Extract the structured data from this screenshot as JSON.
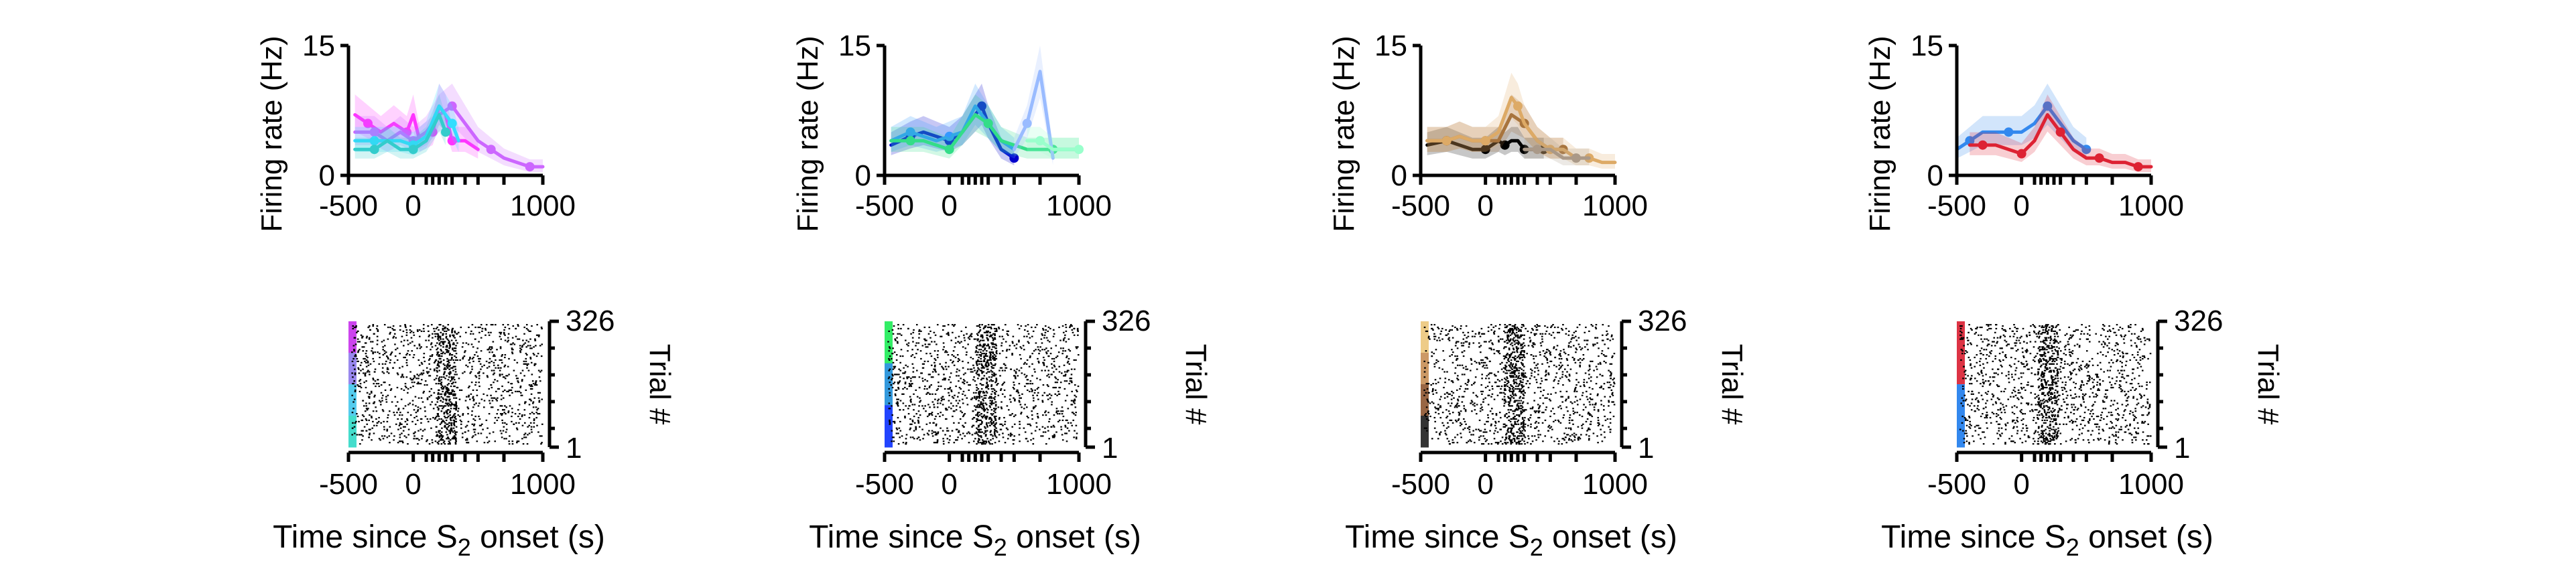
{
  "figure": {
    "psth_ylabel": "Firing rate (Hz)",
    "raster_ylabel": "Trial #",
    "xlabel_prefix": "Time since S",
    "xlabel_sub": "2",
    "xlabel_suffix": " onset (s)"
  },
  "chart_data": [
    {
      "type": "line",
      "x_ticks": [
        "-500",
        "0",
        "1000"
      ],
      "y_ticks": [
        "0",
        "15"
      ],
      "xlim": [
        -500,
        1000
      ],
      "ylim": [
        0,
        15
      ],
      "series": [
        {
          "color": "#ff33ff",
          "x": [
            -450,
            -350,
            -250,
            -150,
            -50,
            0,
            50,
            150,
            200,
            250,
            300,
            400,
            500
          ],
          "y": [
            7,
            6,
            5,
            6,
            5,
            7,
            4,
            5,
            8,
            7,
            4,
            4,
            3
          ]
        },
        {
          "color": "#cc66ff",
          "x": [
            -450,
            -300,
            -200,
            -100,
            0,
            100,
            200,
            300,
            400,
            500,
            600,
            700,
            800,
            900,
            1000
          ],
          "y": [
            5,
            5,
            4,
            5,
            4,
            5,
            7,
            8,
            6,
            4,
            3,
            2,
            1.5,
            1,
            1
          ]
        },
        {
          "color": "#33ddff",
          "x": [
            -450,
            -300,
            -200,
            -100,
            0,
            100,
            200,
            300,
            350
          ],
          "y": [
            4,
            4,
            4,
            4,
            3.5,
            4.5,
            8,
            6,
            4
          ]
        },
        {
          "color": "#33cccc",
          "x": [
            -450,
            -300,
            -200,
            -100,
            0,
            100,
            200,
            250
          ],
          "y": [
            3,
            3,
            4,
            3,
            3,
            4,
            7,
            5
          ]
        }
      ]
    },
    {
      "type": "line",
      "x_ticks": [
        "-500",
        "0",
        "1000"
      ],
      "y_ticks": [
        "0",
        "15"
      ],
      "xlim": [
        -500,
        1000
      ],
      "ylim": [
        0,
        15
      ],
      "series": [
        {
          "color": "#0000cc",
          "x": [
            -450,
            -300,
            -200,
            -100,
            0,
            100,
            200,
            250,
            300,
            400,
            500
          ],
          "y": [
            3.5,
            4.5,
            5,
            4.5,
            4,
            5,
            7,
            8,
            6,
            3,
            2
          ]
        },
        {
          "color": "#3399ff",
          "x": [
            -450,
            -300,
            -200,
            -100,
            0,
            100,
            200,
            300,
            400,
            500
          ],
          "y": [
            4,
            5,
            4.5,
            4,
            4.5,
            5,
            8,
            6,
            4,
            3
          ]
        },
        {
          "color": "#33dd88",
          "x": [
            -450,
            -300,
            -200,
            -100,
            0,
            100,
            200,
            300,
            400,
            600,
            800,
            1000
          ],
          "y": [
            4,
            4,
            4,
            3.5,
            3,
            5,
            7,
            6,
            4,
            3,
            3,
            3
          ]
        },
        {
          "color": "#99bbff",
          "x": [
            500,
            600,
            700,
            800
          ],
          "y": [
            3,
            6,
            12,
            2
          ]
        },
        {
          "color": "#99ffcc",
          "x": [
            600,
            700,
            800,
            900,
            1000
          ],
          "y": [
            4,
            4,
            3,
            3,
            3
          ]
        }
      ]
    },
    {
      "type": "line",
      "x_ticks": [
        "-500",
        "0",
        "1000"
      ],
      "y_ticks": [
        "0",
        "15"
      ],
      "xlim": [
        -500,
        1000
      ],
      "ylim": [
        0,
        15
      ],
      "series": [
        {
          "color": "#000000",
          "x": [
            -450,
            -300,
            -200,
            -100,
            0,
            50,
            100,
            150,
            200,
            250,
            300,
            350,
            400,
            450
          ],
          "y": [
            3.5,
            4,
            3.5,
            3,
            3,
            3.5,
            4,
            3.5,
            4,
            4,
            3,
            3,
            3,
            3
          ]
        },
        {
          "color": "#996633",
          "x": [
            -450,
            -300,
            -200,
            -100,
            0,
            100,
            200,
            300,
            400,
            500,
            600
          ],
          "y": [
            4,
            4,
            4.5,
            4,
            4,
            4,
            7,
            6,
            4,
            3,
            3
          ]
        },
        {
          "color": "#ddaa66",
          "x": [
            -450,
            -300,
            -200,
            -100,
            0,
            100,
            200,
            250,
            300,
            400,
            500,
            600,
            700,
            800,
            900,
            1000
          ],
          "y": [
            4,
            4,
            4.5,
            4,
            4,
            5,
            9,
            8,
            6,
            4,
            3,
            3,
            2,
            2,
            1.5,
            1.5
          ]
        },
        {
          "color": "#aa9988",
          "x": [
            300,
            400,
            500,
            600,
            700,
            800
          ],
          "y": [
            3,
            3,
            3,
            2,
            2,
            2
          ]
        }
      ]
    },
    {
      "type": "line",
      "x_ticks": [
        "-500",
        "0",
        "1000"
      ],
      "y_ticks": [
        "0",
        "15"
      ],
      "xlim": [
        -500,
        1000
      ],
      "ylim": [
        0,
        15
      ],
      "series": [
        {
          "color": "#3388ee",
          "x": [
            -500,
            -400,
            -300,
            -200,
            -100,
            0,
            100,
            200,
            300,
            400,
            500
          ],
          "y": [
            3,
            4,
            5,
            5,
            5,
            5,
            6,
            8,
            6,
            4,
            3
          ]
        },
        {
          "color": "#dd2233",
          "x": [
            -400,
            -300,
            -200,
            -100,
            0,
            100,
            200,
            300,
            400,
            500,
            600,
            700,
            800,
            900,
            1000
          ],
          "y": [
            3.5,
            3.5,
            3.5,
            3,
            2.5,
            4,
            7,
            5,
            3,
            2,
            2,
            1.5,
            1.5,
            1,
            1
          ]
        }
      ]
    }
  ],
  "rasters": [
    {
      "trial_top": "326",
      "trial_bottom": "1",
      "x_ticks": [
        "-500",
        "0",
        "1000"
      ],
      "groups": [
        "#cc44ee",
        "#9988ee",
        "#55ccee",
        "#44ddcc"
      ]
    },
    {
      "trial_top": "326",
      "trial_bottom": "1",
      "x_ticks": [
        "-500",
        "0",
        "1000"
      ],
      "groups": [
        "#33ee66",
        "#3399dd",
        "#2244ff"
      ]
    },
    {
      "trial_top": "326",
      "trial_bottom": "1",
      "x_ticks": [
        "-500",
        "0",
        "1000"
      ],
      "groups": [
        "#eecc88",
        "#cc9966",
        "#996644",
        "#333333"
      ]
    },
    {
      "trial_top": "326",
      "trial_bottom": "1",
      "x_ticks": [
        "-500",
        "0",
        "1000"
      ],
      "groups": [
        "#dd3344",
        "#3388ee"
      ]
    }
  ]
}
